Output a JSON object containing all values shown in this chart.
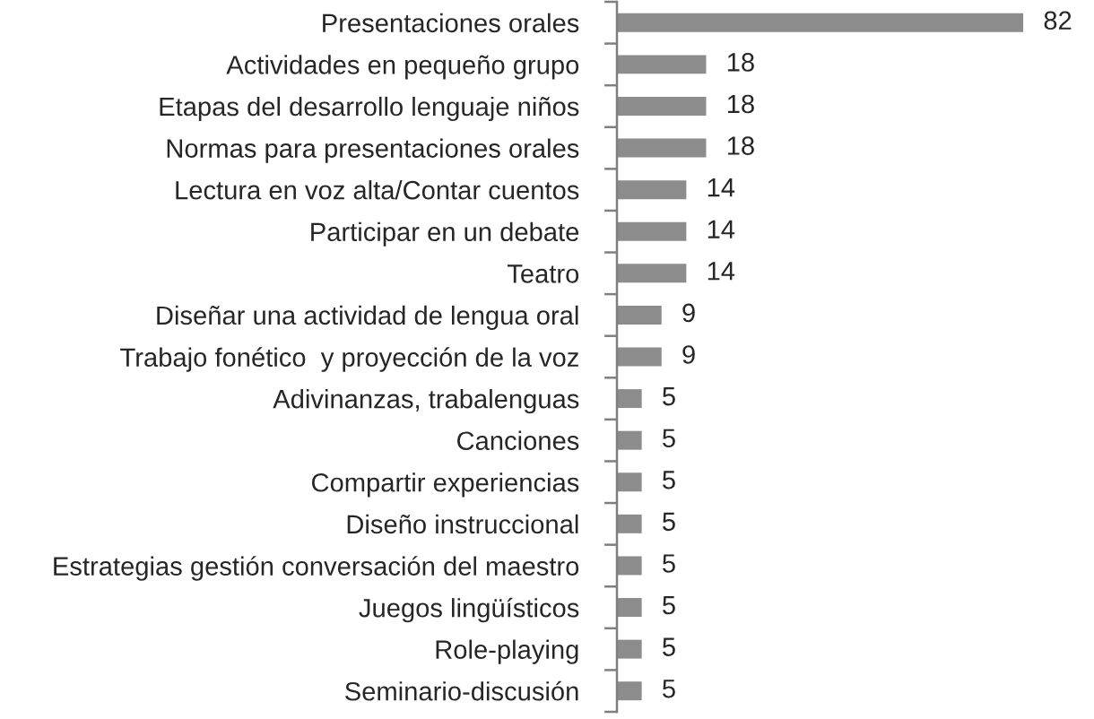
{
  "chart_data": {
    "type": "bar",
    "orientation": "horizontal",
    "categories": [
      "Presentaciones orales",
      "Actividades en pequeño grupo",
      "Etapas del desarrollo lenguaje niños",
      "Normas para presentaciones orales",
      "Lectura en voz alta/Contar cuentos",
      "Participar en un debate",
      "Teatro",
      "Diseñar una actividad de lengua oral",
      "Trabajo fonético  y proyección de la voz",
      "Adivinanzas, trabalenguas",
      "Canciones",
      "Compartir experiencias",
      "Diseño instruccional",
      "Estrategias gestión conversación del maestro",
      "Juegos lingüísticos",
      "Role-playing",
      "Seminario-discusión"
    ],
    "values": [
      82,
      18,
      18,
      18,
      14,
      14,
      14,
      9,
      9,
      5,
      5,
      5,
      5,
      5,
      5,
      5,
      5
    ],
    "color": "#8c8c8c",
    "data_labels": true
  }
}
